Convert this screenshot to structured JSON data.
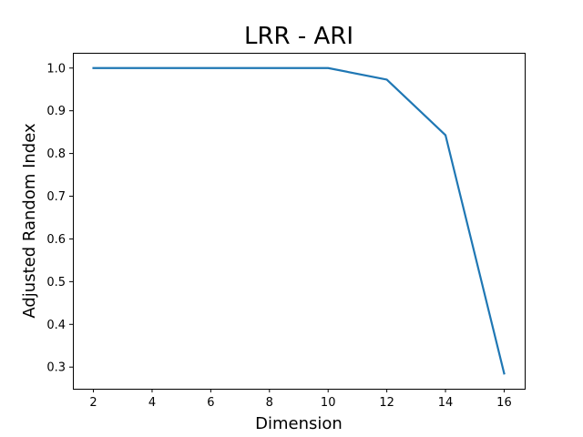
{
  "chart_data": {
    "type": "line",
    "title": "LRR - ARI",
    "xlabel": "Dimension",
    "ylabel": "Adjusted Random Index",
    "x": [
      2,
      4,
      6,
      8,
      10,
      12,
      14,
      16
    ],
    "series": [
      {
        "values": [
          1.0,
          1.0,
          1.0,
          1.0,
          1.0,
          0.973,
          0.843,
          0.285
        ],
        "color": "#1f77b4"
      }
    ],
    "xticks": [
      2,
      4,
      6,
      8,
      10,
      12,
      14,
      16
    ],
    "yticks": [
      0.3,
      0.4,
      0.5,
      0.6,
      0.7,
      0.8,
      0.9,
      1.0
    ],
    "xlim": [
      1.3,
      16.7
    ],
    "ylim": [
      0.2493,
      1.0357
    ],
    "grid": false,
    "legend": false
  }
}
